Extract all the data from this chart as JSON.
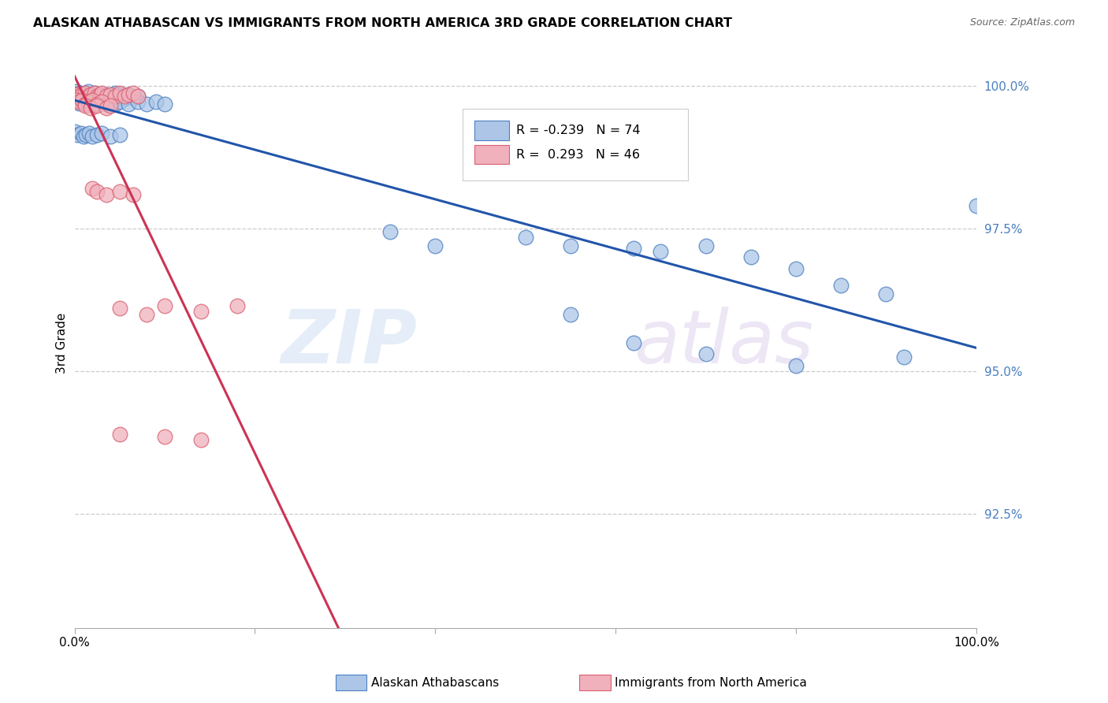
{
  "title": "ALASKAN ATHABASCAN VS IMMIGRANTS FROM NORTH AMERICA 3RD GRADE CORRELATION CHART",
  "source": "Source: ZipAtlas.com",
  "xlabel_blue": "Alaskan Athabascans",
  "xlabel_pink": "Immigrants from North America",
  "ylabel": "3rd Grade",
  "xlim": [
    0,
    1.0
  ],
  "ylim": [
    0.905,
    1.005
  ],
  "yticks": [
    0.925,
    0.95,
    0.975,
    1.0
  ],
  "ytick_labels": [
    "92.5%",
    "95.0%",
    "97.5%",
    "100.0%"
  ],
  "blue_R": -0.239,
  "blue_N": 74,
  "pink_R": 0.293,
  "pink_N": 46,
  "blue_color": "#adc6e8",
  "pink_color": "#f0b0bc",
  "blue_edge_color": "#4a7fc1",
  "pink_edge_color": "#d96070",
  "blue_line_color": "#2255aa",
  "pink_line_color": "#cc3355",
  "watermark_zip": "ZIP",
  "watermark_atlas": "atlas",
  "blue_scatter_x": [
    0.002,
    0.004,
    0.006,
    0.008,
    0.01,
    0.012,
    0.015,
    0.018,
    0.02,
    0.022,
    0.025,
    0.028,
    0.03,
    0.032,
    0.035,
    0.038,
    0.04,
    0.042,
    0.045,
    0.048,
    0.05,
    0.052,
    0.055,
    0.058,
    0.06,
    0.065,
    0.07,
    0.002,
    0.005,
    0.008,
    0.012,
    0.015,
    0.018,
    0.022,
    0.025,
    0.03,
    0.035,
    0.04,
    0.045,
    0.05,
    0.06,
    0.07,
    0.08,
    0.09,
    0.1,
    0.0,
    0.003,
    0.007,
    0.01,
    0.013,
    0.016,
    0.02,
    0.025,
    0.03,
    0.04,
    0.05,
    0.35,
    0.4,
    0.5,
    0.55,
    0.62,
    0.65,
    0.7,
    0.75,
    0.8,
    0.85,
    0.9,
    0.55,
    0.62,
    0.7,
    0.8,
    0.92,
    1.0
  ],
  "blue_scatter_y": [
    0.999,
    0.9985,
    0.9988,
    0.9982,
    0.9985,
    0.9988,
    0.999,
    0.9982,
    0.9985,
    0.9988,
    0.9982,
    0.9985,
    0.9978,
    0.9982,
    0.9985,
    0.998,
    0.9982,
    0.9985,
    0.9988,
    0.998,
    0.9982,
    0.9985,
    0.9978,
    0.9982,
    0.9985,
    0.998,
    0.9982,
    0.9975,
    0.997,
    0.9972,
    0.9968,
    0.9972,
    0.9968,
    0.9972,
    0.9968,
    0.9972,
    0.9968,
    0.9972,
    0.9968,
    0.9972,
    0.9968,
    0.9972,
    0.9968,
    0.9972,
    0.9968,
    0.992,
    0.9915,
    0.9918,
    0.9912,
    0.9915,
    0.9918,
    0.9912,
    0.9915,
    0.9918,
    0.9912,
    0.9915,
    0.9745,
    0.972,
    0.9735,
    0.972,
    0.9715,
    0.971,
    0.972,
    0.97,
    0.968,
    0.965,
    0.9635,
    0.96,
    0.955,
    0.953,
    0.951,
    0.9525,
    0.979
  ],
  "pink_scatter_x": [
    0.002,
    0.005,
    0.008,
    0.012,
    0.015,
    0.018,
    0.022,
    0.025,
    0.028,
    0.03,
    0.035,
    0.04,
    0.045,
    0.05,
    0.055,
    0.06,
    0.065,
    0.07,
    0.002,
    0.005,
    0.008,
    0.012,
    0.015,
    0.02,
    0.025,
    0.03,
    0.012,
    0.018,
    0.025,
    0.035,
    0.04,
    0.02,
    0.025,
    0.035,
    0.05,
    0.065,
    0.05,
    0.08,
    0.1,
    0.14,
    0.18,
    0.05,
    0.1,
    0.14
  ],
  "pink_scatter_y": [
    0.9985,
    0.9982,
    0.9985,
    0.9988,
    0.9982,
    0.9985,
    0.9988,
    0.9982,
    0.9985,
    0.9988,
    0.9982,
    0.9985,
    0.9982,
    0.9988,
    0.9982,
    0.9985,
    0.9988,
    0.9982,
    0.9975,
    0.9972,
    0.9975,
    0.9968,
    0.9972,
    0.9975,
    0.9968,
    0.9972,
    0.9965,
    0.9962,
    0.9965,
    0.9962,
    0.9965,
    0.982,
    0.9815,
    0.981,
    0.9815,
    0.981,
    0.961,
    0.96,
    0.9615,
    0.9605,
    0.9615,
    0.939,
    0.9385,
    0.938
  ]
}
